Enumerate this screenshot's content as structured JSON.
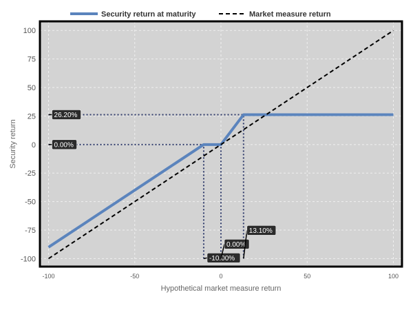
{
  "chart_data": {
    "type": "line",
    "xlabel": "Hypothetical market measure return",
    "ylabel": "Security return",
    "xlim": [
      -105,
      105
    ],
    "ylim": [
      -107,
      108
    ],
    "x_ticks": [
      -100,
      -50,
      0,
      50,
      100
    ],
    "y_ticks": [
      100,
      75,
      50,
      25,
      0,
      -25,
      -50,
      -75,
      -100
    ],
    "grid": true,
    "legend_position": "top",
    "series": [
      {
        "name": "Security return at maturity",
        "style": "solid",
        "color": "#5b84bd",
        "x": [
          -100,
          -10,
          0,
          13.1,
          100
        ],
        "y": [
          -90,
          0,
          0,
          26.2,
          26.2
        ]
      },
      {
        "name": "Market measure return",
        "style": "dashed",
        "color": "#000000",
        "x": [
          -100,
          100
        ],
        "y": [
          -100,
          100
        ]
      }
    ],
    "reference_lines": [
      {
        "orientation": "horizontal",
        "value": 26.2,
        "from": -100,
        "to": 13.1
      },
      {
        "orientation": "horizontal",
        "value": 0,
        "from": -100,
        "to": 0
      },
      {
        "orientation": "vertical",
        "value": -10,
        "from": -100,
        "to": 0
      },
      {
        "orientation": "vertical",
        "value": 0,
        "from": -100,
        "to": 0
      },
      {
        "orientation": "vertical",
        "value": 13.1,
        "from": -100,
        "to": 26.2
      }
    ],
    "annotations": [
      {
        "text": "26.20%",
        "x": -100,
        "y": 26.2,
        "dx": 5,
        "dy": 0
      },
      {
        "text": "0.00%",
        "x": -100,
        "y": 0,
        "dx": 5,
        "dy": 0
      },
      {
        "text": "-10.00%",
        "x": -10,
        "y": -100,
        "dx": 5,
        "dy": -1
      },
      {
        "text": "0.00%",
        "x": 0,
        "y": -100,
        "dx": 5,
        "dy": -21
      },
      {
        "text": "13.10%",
        "x": 13.1,
        "y": -100,
        "dx": 5,
        "dy": -41
      }
    ]
  },
  "colors": {
    "plot_background": "#d3d3d3",
    "grid": "#f0f0f0",
    "reference_line": "#2f3b6b",
    "label_background": "#2b2b2b"
  }
}
